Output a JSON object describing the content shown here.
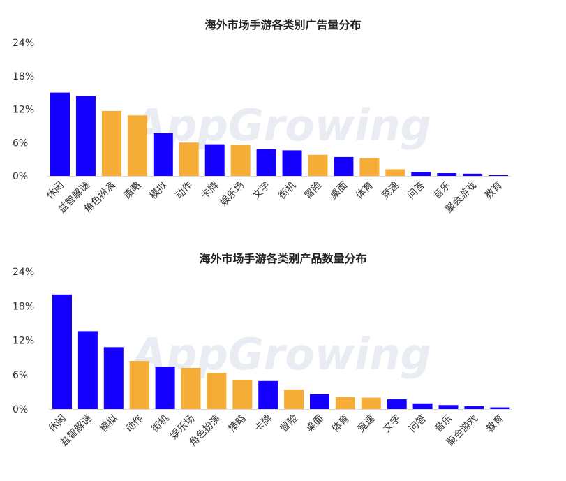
{
  "colors": {
    "blue": "#1500ff",
    "orange": "#f5ad37",
    "axis": "#333333"
  },
  "chart_data": [
    {
      "type": "bar",
      "title": "海外市场手游各类别广告量分布",
      "categories": [
        "休闲",
        "益智解谜",
        "角色扮演",
        "策略",
        "模拟",
        "动作",
        "卡牌",
        "娱乐场",
        "文字",
        "街机",
        "冒险",
        "桌面",
        "体育",
        "竞速",
        "问答",
        "音乐",
        "聚会游戏",
        "教育"
      ],
      "values": [
        15.0,
        14.4,
        11.7,
        10.9,
        7.7,
        6.0,
        5.7,
        5.6,
        4.8,
        4.6,
        3.8,
        3.4,
        3.2,
        1.2,
        0.7,
        0.5,
        0.4,
        0.1
      ],
      "bar_colors": [
        "blue",
        "blue",
        "orange",
        "orange",
        "blue",
        "orange",
        "blue",
        "orange",
        "blue",
        "blue",
        "orange",
        "blue",
        "orange",
        "orange",
        "blue",
        "blue",
        "blue",
        "blue"
      ],
      "yticks": [
        "24%",
        "18%",
        "12%",
        "6%",
        "0%"
      ],
      "ylim": [
        0,
        24
      ],
      "watermark": "AppGrowing"
    },
    {
      "type": "bar",
      "title": "海外市场手游各类别产品数量分布",
      "categories": [
        "休闲",
        "益智解谜",
        "模拟",
        "动作",
        "街机",
        "娱乐场",
        "角色扮演",
        "策略",
        "卡牌",
        "冒险",
        "桌面",
        "体育",
        "竞速",
        "文字",
        "问答",
        "音乐",
        "聚会游戏",
        "教育"
      ],
      "values": [
        20.0,
        13.6,
        10.8,
        8.4,
        7.4,
        7.2,
        6.3,
        5.1,
        4.9,
        3.4,
        2.6,
        2.1,
        2.0,
        1.7,
        1.0,
        0.7,
        0.5,
        0.3
      ],
      "bar_colors": [
        "blue",
        "blue",
        "blue",
        "orange",
        "blue",
        "orange",
        "orange",
        "orange",
        "blue",
        "orange",
        "blue",
        "orange",
        "orange",
        "blue",
        "blue",
        "blue",
        "blue",
        "blue"
      ],
      "yticks": [
        "24%",
        "18%",
        "12%",
        "6%",
        "0%"
      ],
      "ylim": [
        0,
        24
      ],
      "watermark": "AppGrowing"
    }
  ]
}
